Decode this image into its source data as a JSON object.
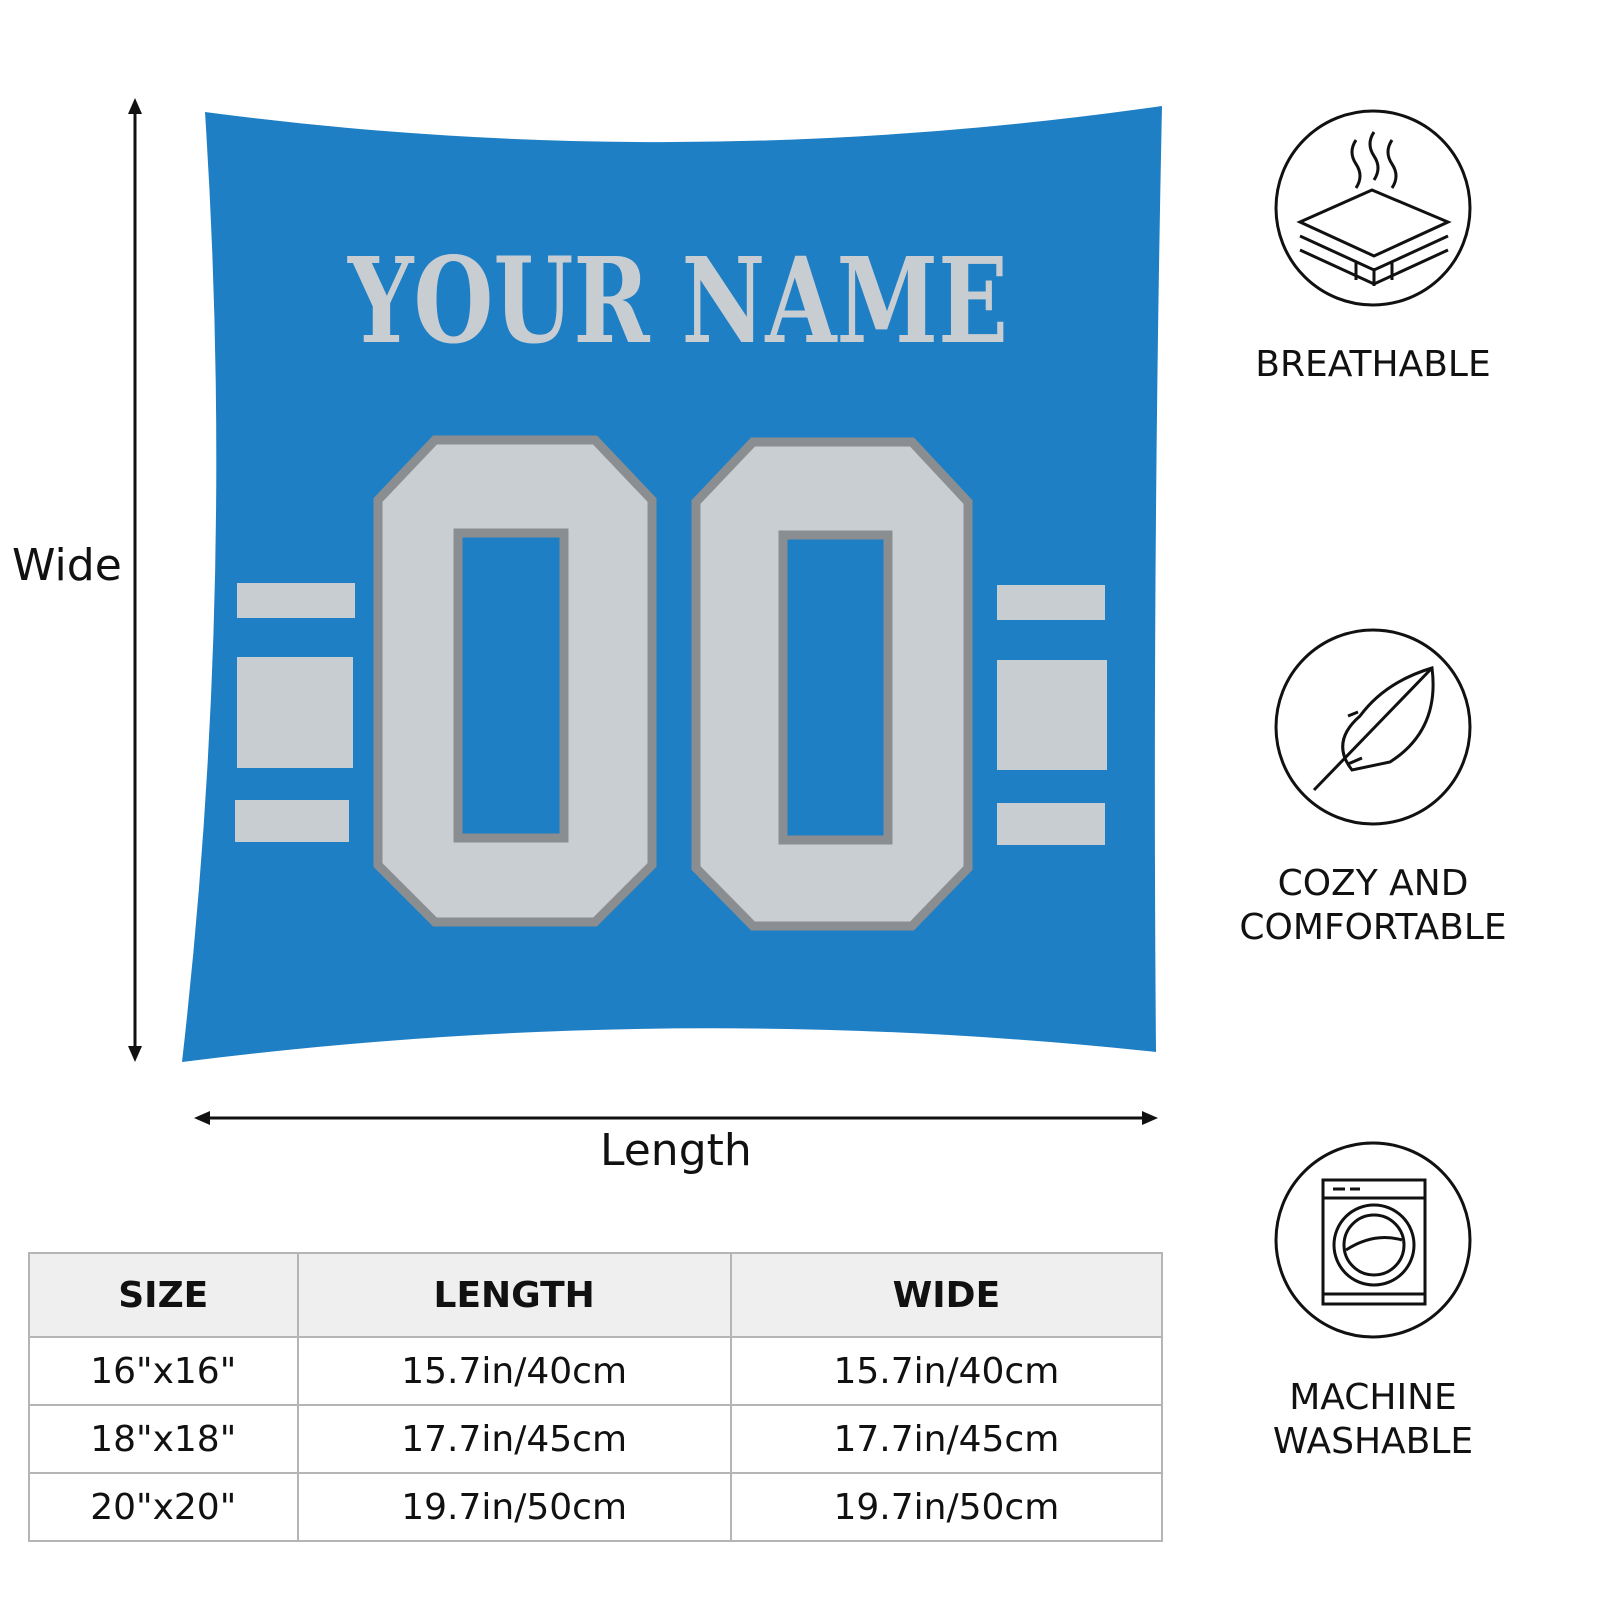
{
  "pillow": {
    "name_text": "YOUR NAME",
    "number_text": "00",
    "colors": {
      "body": "#1f7fc4",
      "lettering": "#c8cdd2",
      "outline": "#8b8e91"
    }
  },
  "dimensions": {
    "vertical_label": "Wide",
    "horizontal_label": "Length"
  },
  "size_table": {
    "headers": [
      "SIZE",
      "LENGTH",
      "WIDE"
    ],
    "rows": [
      [
        "16\"x16\"",
        "15.7in/40cm",
        "15.7in/40cm"
      ],
      [
        "18\"x18\"",
        "17.7in/45cm",
        "17.7in/45cm"
      ],
      [
        "20\"x20\"",
        "19.7in/50cm",
        "19.7in/50cm"
      ]
    ]
  },
  "features": [
    {
      "icon": "breathable-layers-icon",
      "line1": "BREATHABLE",
      "line2": ""
    },
    {
      "icon": "feather-icon",
      "line1": "COZY AND",
      "line2": "COMFORTABLE"
    },
    {
      "icon": "washing-machine-icon",
      "line1": "MACHINE",
      "line2": "WASHABLE"
    }
  ]
}
